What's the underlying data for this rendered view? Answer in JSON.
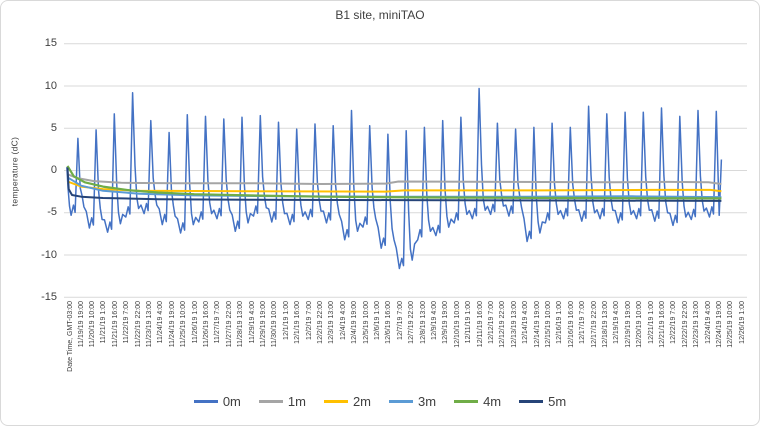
{
  "chart_data": {
    "type": "line",
    "title": "B1 site, miniTAO",
    "ylabel": "temperature (dC)",
    "xlabel": "Date Time, GMT-03:00",
    "ylim": [
      -15,
      15
    ],
    "yticks": [
      15,
      10,
      5,
      0,
      -5,
      -10,
      -15
    ],
    "grid": "horizontal-only",
    "gridline_color": "#d9d9d9",
    "legend_position": "bottom",
    "x_time_base": "days since 11/19/19 00:00, GMT-03:00",
    "xtick_interval_hours": 15,
    "xticks": [
      "11/19/19 19:00",
      "11/20/19 10:00",
      "11/21/19 1:00",
      "11/21/19 16:00",
      "11/22/19 7:00",
      "11/22/19 22:00",
      "11/23/19 13:00",
      "11/24/19 4:00",
      "11/24/19 19:00",
      "11/25/19 10:00",
      "11/26/19 1:00",
      "11/26/19 16:00",
      "11/27/19 7:00",
      "11/27/19 22:00",
      "11/28/19 13:00",
      "11/29/19 4:00",
      "11/29/19 19:00",
      "11/30/19 10:00",
      "12/1/19 1:00",
      "12/1/19 16:00",
      "12/2/19 7:00",
      "12/2/19 22:00",
      "12/3/19 13:00",
      "12/4/19 4:00",
      "12/4/19 19:00",
      "12/5/19 10:00",
      "12/6/19 1:00",
      "12/6/19 16:00",
      "12/7/19 7:00",
      "12/7/19 22:00",
      "12/8/19 13:00",
      "12/9/19 4:00",
      "12/9/19 19:00",
      "12/10/19 10:00",
      "12/11/19 1:00",
      "12/11/19 16:00",
      "12/12/19 7:00",
      "12/12/19 22:00",
      "12/13/19 13:00",
      "12/14/19 4:00",
      "12/14/19 19:00",
      "12/15/19 10:00",
      "12/16/19 1:00",
      "12/16/19 16:00",
      "12/17/19 7:00",
      "12/17/19 22:00",
      "12/18/19 13:00",
      "12/19/19 4:00",
      "12/19/19 19:00",
      "12/20/19 10:00",
      "12/21/19 1:00",
      "12/21/19 16:00",
      "12/22/19 7:00",
      "12/22/19 22:00",
      "12/23/19 13:00",
      "12/24/19 4:00",
      "12/24/19 19:00",
      "12/25/19 10:00",
      "12/26/19 1:00"
    ],
    "series": [
      {
        "name": "0m",
        "color": "#4472C4",
        "width": 1.5,
        "description": "diurnal oscillation; daily [date, peak, trough] in dC",
        "daily_peak_trough": [
          [
            "11/19",
            3.8,
            -5.3
          ],
          [
            "11/20",
            4.8,
            -6.8
          ],
          [
            "11/21",
            6.7,
            -7.3
          ],
          [
            "11/22",
            9.2,
            -5.5
          ],
          [
            "11/23",
            5.9,
            -5.1
          ],
          [
            "11/24",
            4.5,
            -6.4
          ],
          [
            "11/25",
            6.6,
            -7.4
          ],
          [
            "11/26",
            6.4,
            -6.1
          ],
          [
            "11/27",
            6.1,
            -5.7
          ],
          [
            "11/28",
            6.3,
            -7.2
          ],
          [
            "11/29",
            6.5,
            -5.4
          ],
          [
            "11/30",
            5.7,
            -6.1
          ],
          [
            "12/1",
            4.9,
            -6.4
          ],
          [
            "12/2",
            5.5,
            -5.8
          ],
          [
            "12/3",
            5.3,
            -6.2
          ],
          [
            "12/4",
            7.1,
            -8.2
          ],
          [
            "12/5",
            5.3,
            -6.7
          ],
          [
            "12/6",
            4.3,
            -9.2
          ],
          [
            "12/7",
            4.7,
            -11.6
          ],
          [
            "12/8",
            5.1,
            -8.2
          ],
          [
            "12/9",
            5.9,
            -7.7
          ],
          [
            "12/10",
            6.3,
            -6.2
          ],
          [
            "12/11",
            9.7,
            -5.7
          ],
          [
            "12/12",
            5.6,
            -5.2
          ],
          [
            "12/13",
            4.9,
            -5.4
          ],
          [
            "12/14",
            5.1,
            -8.4
          ],
          [
            "12/15",
            5.6,
            -6.2
          ],
          [
            "12/16",
            5.1,
            -5.7
          ],
          [
            "12/17",
            7.6,
            -6.0
          ],
          [
            "12/18",
            6.7,
            -5.7
          ],
          [
            "12/19",
            6.9,
            -6.2
          ],
          [
            "12/20",
            6.9,
            -5.7
          ],
          [
            "12/21",
            7.4,
            -6.0
          ],
          [
            "12/22",
            6.4,
            -6.5
          ],
          [
            "12/23",
            7.1,
            -5.8
          ],
          [
            "12/24",
            7.0,
            -5.5
          ]
        ],
        "lead_in": [
          [
            0.02,
            0.4
          ],
          [
            0.08,
            -2.0
          ],
          [
            0.16,
            -4.2
          ]
        ],
        "tail": [
          [
            35.78,
            -5.3
          ],
          [
            35.9,
            1.3
          ]
        ]
      },
      {
        "name": "1m",
        "color": "#A5A5A5",
        "width": 2,
        "points": [
          [
            0.05,
            -0.45
          ],
          [
            0.6,
            -0.9
          ],
          [
            1.5,
            -1.25
          ],
          [
            3,
            -1.45
          ],
          [
            6,
            -1.5
          ],
          [
            10,
            -1.5
          ],
          [
            14,
            -1.6
          ],
          [
            17.5,
            -1.55
          ],
          [
            18.2,
            -1.3
          ],
          [
            24,
            -1.35
          ],
          [
            30,
            -1.4
          ],
          [
            33,
            -1.35
          ],
          [
            35.2,
            -1.4
          ],
          [
            35.9,
            -1.6
          ]
        ]
      },
      {
        "name": "2m",
        "color": "#FFC000",
        "width": 2,
        "points": [
          [
            0.05,
            -1.3
          ],
          [
            0.8,
            -1.9
          ],
          [
            2,
            -2.2
          ],
          [
            4,
            -2.4
          ],
          [
            10,
            -2.45
          ],
          [
            17.5,
            -2.5
          ],
          [
            18.5,
            -2.35
          ],
          [
            26,
            -2.35
          ],
          [
            32,
            -2.3
          ],
          [
            35.3,
            -2.3
          ],
          [
            35.9,
            -2.45
          ]
        ]
      },
      {
        "name": "3m",
        "color": "#5B9BD5",
        "width": 2,
        "points": [
          [
            0.05,
            -0.8
          ],
          [
            0.8,
            -1.8
          ],
          [
            2,
            -2.4
          ],
          [
            4,
            -2.75
          ],
          [
            7,
            -2.95
          ],
          [
            12,
            -3.05
          ],
          [
            18,
            -3.1
          ],
          [
            25,
            -3.1
          ],
          [
            31,
            -3.05
          ],
          [
            35.9,
            -3.15
          ]
        ]
      },
      {
        "name": "4m",
        "color": "#70AD47",
        "width": 2.2,
        "points": [
          [
            0.05,
            0.55
          ],
          [
            0.4,
            -0.7
          ],
          [
            1,
            -1.4
          ],
          [
            2,
            -1.9
          ],
          [
            3.5,
            -2.35
          ],
          [
            5,
            -2.6
          ],
          [
            7,
            -2.8
          ],
          [
            10,
            -2.95
          ],
          [
            14,
            -3.1
          ],
          [
            20,
            -3.2
          ],
          [
            27,
            -3.25
          ],
          [
            35.9,
            -3.3
          ]
        ]
      },
      {
        "name": "5m",
        "color": "#264478",
        "width": 2,
        "points": [
          [
            0.05,
            0.35
          ],
          [
            0.12,
            -2.2
          ],
          [
            0.3,
            -2.9
          ],
          [
            0.8,
            -3.1
          ],
          [
            2,
            -3.25
          ],
          [
            5,
            -3.4
          ],
          [
            10,
            -3.45
          ],
          [
            18,
            -3.5
          ],
          [
            27,
            -3.55
          ],
          [
            35.9,
            -3.6
          ]
        ]
      }
    ]
  }
}
